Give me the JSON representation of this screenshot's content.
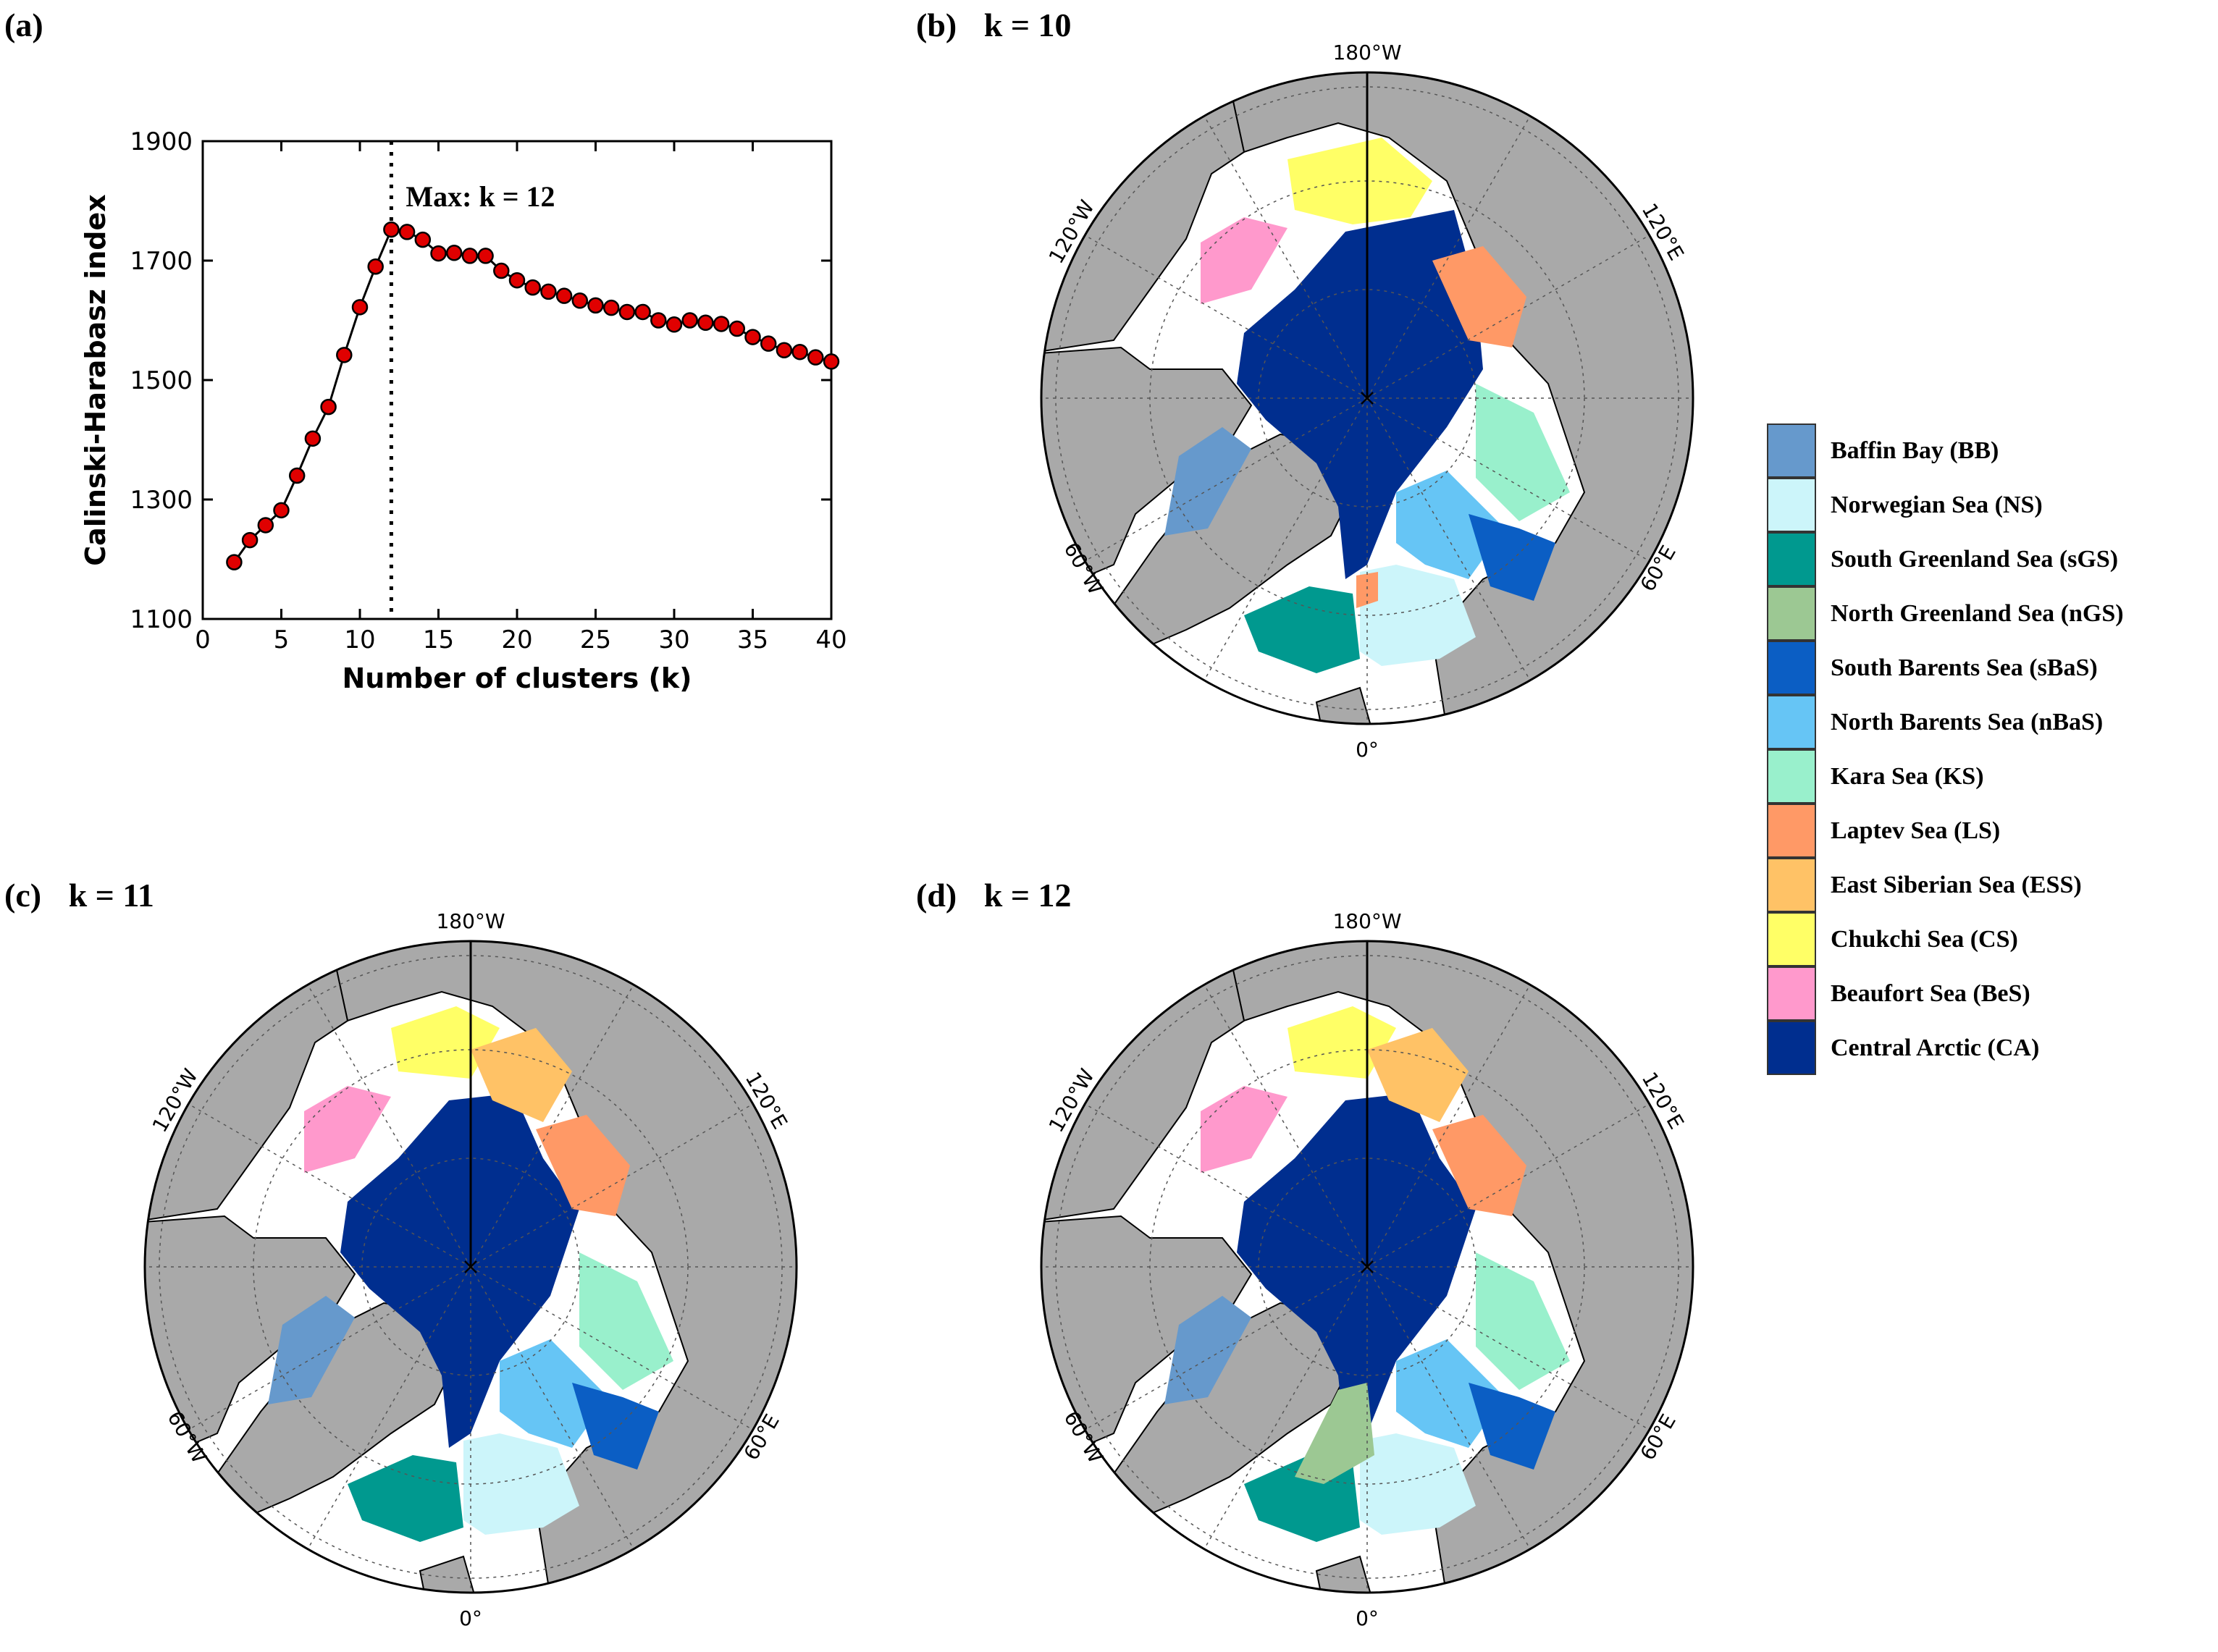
{
  "panels": {
    "a": {
      "label": "(a)"
    },
    "b": {
      "label": "(b)",
      "k_label": "k = 10"
    },
    "c": {
      "label": "(c)",
      "k_label": "k = 11"
    },
    "d": {
      "label": "(d)",
      "k_label": "k = 12"
    }
  },
  "chart_data": {
    "type": "line",
    "xlabel": "Number of clusters (k)",
    "ylabel": "Calinski-Harabasz index",
    "xlim": [
      0,
      40
    ],
    "ylim": [
      1100,
      1900
    ],
    "xticks": [
      0,
      5,
      10,
      15,
      20,
      25,
      30,
      35,
      40
    ],
    "yticks": [
      1100,
      1300,
      1500,
      1700,
      1900
    ],
    "annotation": {
      "text": "Max: k = 12",
      "x": 12
    },
    "marker_color": "#e00000",
    "x": [
      2,
      3,
      4,
      5,
      6,
      7,
      8,
      9,
      10,
      11,
      12,
      13,
      14,
      15,
      16,
      17,
      18,
      19,
      20,
      21,
      22,
      23,
      24,
      25,
      26,
      27,
      28,
      29,
      30,
      31,
      32,
      33,
      34,
      35,
      36,
      37,
      38,
      39,
      40
    ],
    "values": [
      1195,
      1232,
      1257,
      1282,
      1340,
      1402,
      1455,
      1542,
      1622,
      1690,
      1752,
      1748,
      1735,
      1712,
      1713,
      1708,
      1708,
      1683,
      1667,
      1655,
      1648,
      1641,
      1633,
      1625,
      1621,
      1614,
      1614,
      1600,
      1593,
      1600,
      1596,
      1594,
      1586,
      1572,
      1561,
      1550,
      1547,
      1538,
      1531
    ]
  },
  "map_labels": {
    "top": "180°W",
    "bottom": "0°",
    "left_upper": "120°W",
    "left_lower": "60°W",
    "right_upper": "120°E",
    "right_lower": "60°E"
  },
  "legend": [
    {
      "label": "Baffin Bay (BB)",
      "color": "#6699cc"
    },
    {
      "label": "Norwegian Sea (NS)",
      "color": "#ccf5fa"
    },
    {
      "label": "South Greenland Sea (sGS)",
      "color": "#00998f"
    },
    {
      "label": "North Greenland Sea (nGS)",
      "color": "#9cc893"
    },
    {
      "label": "South Barents Sea (sBaS)",
      "color": "#0b5ec4"
    },
    {
      "label": "North Barents Sea (nBaS)",
      "color": "#66c5f5"
    },
    {
      "label": "Kara Sea (KS)",
      "color": "#99f0cc"
    },
    {
      "label": "Laptev Sea (LS)",
      "color": "#ff9966"
    },
    {
      "label": "East Siberian Sea (ESS)",
      "color": "#ffc266"
    },
    {
      "label": "Chukchi Sea (CS)",
      "color": "#ffff66"
    },
    {
      "label": "Beaufort Sea (BeS)",
      "color": "#ff99cc"
    },
    {
      "label": "Central Arctic (CA)",
      "color": "#002e8f"
    }
  ],
  "colors": {
    "land": "#a9a9a9",
    "ocean_background": "#ffffff"
  }
}
